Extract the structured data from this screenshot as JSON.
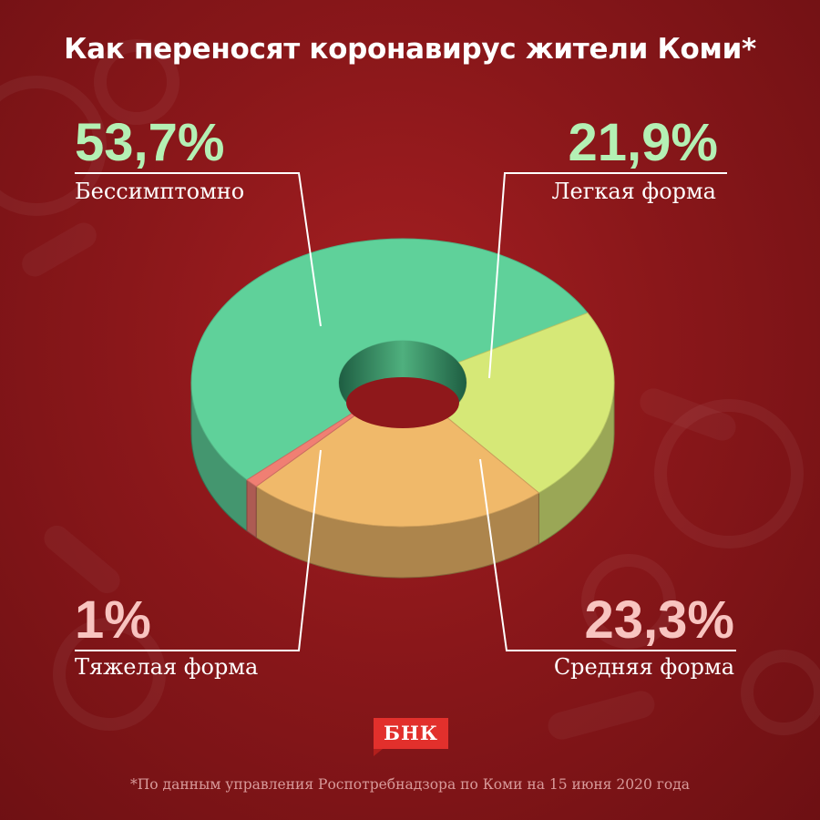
{
  "title": "Как переносят коронавирус жители Коми*",
  "footnote": "*По данным управления Роспотребнадзора по Коми на 15 июня 2020 года",
  "logo_text": "БНК",
  "colors": {
    "background": "#8a171a",
    "accent_green_text": "#b4f0b4",
    "accent_pink_text": "#f8c4c0",
    "logo_red": "#e2302c"
  },
  "chart_data": {
    "type": "pie",
    "style": "3d-donut",
    "title": "Как переносят коронавирус жители Коми*",
    "unit": "%",
    "slices": [
      {
        "label": "Бессимптомно",
        "value": 53.7,
        "display": "53,7%",
        "color": "#5fd19a"
      },
      {
        "label": "Легкая форма",
        "value": 21.9,
        "display": "21,9%",
        "color": "#d6e877"
      },
      {
        "label": "Средняя форма",
        "value": 23.3,
        "display": "23,3%",
        "color": "#f0b96a"
      },
      {
        "label": "Тяжелая форма",
        "value": 1,
        "display": "1%",
        "color": "#f07f73"
      }
    ]
  }
}
